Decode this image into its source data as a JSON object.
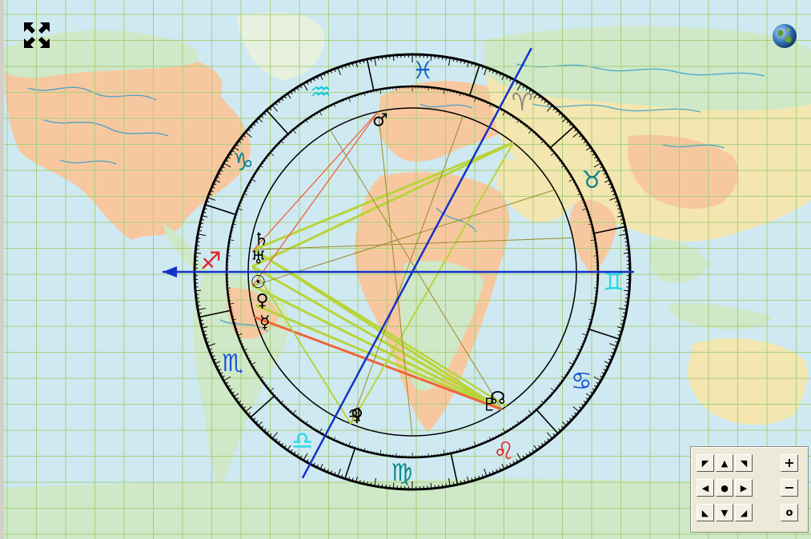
{
  "map": {
    "background_colors": {
      "ocean": "#cfe9f2",
      "land_green": "#cfe8c8",
      "land_orange": "#f7c8a0",
      "land_tan": "#f3e6b0",
      "grid": "#a6d07a",
      "river": "#2a9bd1"
    }
  },
  "controls": {
    "fullscreen_icon": "expand-arrows",
    "globe_icon": "earth-globe",
    "navpad": {
      "pan_up_left": "◤",
      "pan_up": "▲",
      "pan_up_right": "◥",
      "pan_left": "◀",
      "center": "●",
      "pan_right": "▶",
      "pan_down_left": "◣",
      "pan_down": "▼",
      "pan_down_right": "◢",
      "zoom_in": "+",
      "zoom_out": "−",
      "zoom_reset": "o"
    }
  },
  "chart": {
    "ring_color": "#000000",
    "axis_color": "#1432c8",
    "zodiac": [
      {
        "name": "pisces",
        "glyph": "♓",
        "color": "#1a66c8"
      },
      {
        "name": "aquarius",
        "glyph": "♒",
        "color": "#11c6d8"
      },
      {
        "name": "capricorn",
        "glyph": "♑",
        "color": "#0f7f8a"
      },
      {
        "name": "sagittarius",
        "glyph": "♐",
        "color": "#e02020"
      },
      {
        "name": "scorpio",
        "glyph": "♏",
        "color": "#1a52d8"
      },
      {
        "name": "libra",
        "glyph": "♎",
        "color": "#20d8e8"
      },
      {
        "name": "virgo",
        "glyph": "♍",
        "color": "#0f8a8a"
      },
      {
        "name": "leo",
        "glyph": "♌",
        "color": "#e02020"
      },
      {
        "name": "cancer",
        "glyph": "♋",
        "color": "#1a52d8"
      },
      {
        "name": "gemini",
        "glyph": "♊",
        "color": "#20d8e8"
      },
      {
        "name": "taurus",
        "glyph": "♉",
        "color": "#0f7f8a"
      },
      {
        "name": "aries",
        "glyph": "♈",
        "color": "#888888"
      }
    ],
    "planets": [
      {
        "name": "mars",
        "glyph": "♂"
      },
      {
        "name": "saturn",
        "glyph": "♄"
      },
      {
        "name": "uranus",
        "glyph": "♅"
      },
      {
        "name": "jupiter",
        "glyph": "♃"
      },
      {
        "name": "sun",
        "glyph": "☉"
      },
      {
        "name": "venus",
        "glyph": "♀"
      },
      {
        "name": "mercury",
        "glyph": "☿"
      },
      {
        "name": "moon",
        "glyph": "♀"
      },
      {
        "name": "pluto",
        "glyph": "♇"
      },
      {
        "name": "node",
        "glyph": "☊"
      }
    ],
    "aspect_colors": {
      "green": "#b8d43a",
      "red": "#f0623a",
      "olive": "#9a8a2a"
    }
  }
}
